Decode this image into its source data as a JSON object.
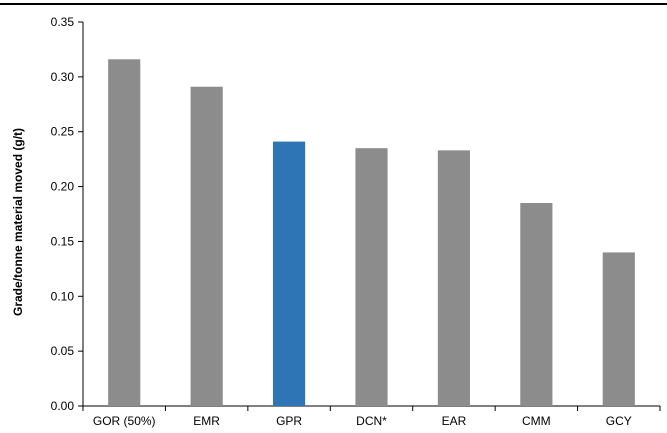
{
  "chart_data": {
    "type": "bar",
    "title": "",
    "xlabel": "",
    "ylabel": "Grade/tonne material moved (g/t)",
    "categories": [
      "GOR (50%)",
      "EMR",
      "GPR",
      "DCN*",
      "EAR",
      "CMM",
      "GCY"
    ],
    "values": [
      0.316,
      0.291,
      0.241,
      0.235,
      0.233,
      0.185,
      0.14
    ],
    "ylim": [
      0,
      0.35
    ],
    "yticks": [
      0.0,
      0.05,
      0.1,
      0.15,
      0.2,
      0.25,
      0.3,
      0.35
    ],
    "ytick_labels": [
      "0.00",
      "0.05",
      "0.10",
      "0.15",
      "0.20",
      "0.25",
      "0.30",
      "0.35"
    ],
    "grid": false,
    "legend": "none",
    "colors": {
      "default_bar": "#8c8c8c",
      "highlight_bar": "#2e75b6",
      "axis": "#000000",
      "top_rule": "#000000"
    },
    "highlight_category": "GPR"
  }
}
